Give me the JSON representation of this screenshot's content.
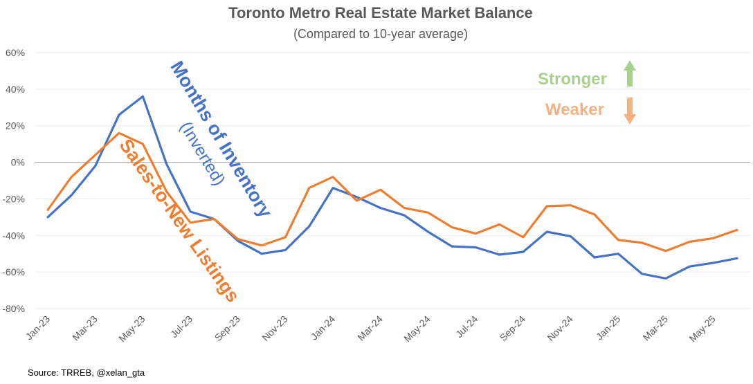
{
  "colors": {
    "inventory": "#4472c4",
    "sales": "#ed7d31",
    "stronger": "#a9d18e",
    "weaker": "#f4b183",
    "text": "#595959"
  },
  "chart_data": {
    "type": "line",
    "title": "Toronto Metro Real Estate Market Balance",
    "subtitle": "(Compared to 10-year average)",
    "ylim": [
      -80,
      60
    ],
    "yticks": [
      "60%",
      "40%",
      "20%",
      "0%",
      "-20%",
      "-40%",
      "-60%",
      "-80%"
    ],
    "ytick_values": [
      60,
      40,
      20,
      0,
      -20,
      -40,
      -60,
      -80
    ],
    "x": [
      "Jan-23",
      "Feb-23",
      "Mar-23",
      "Apr-23",
      "May-23",
      "Jun-23",
      "Jul-23",
      "Aug-23",
      "Sep-23",
      "Oct-23",
      "Nov-23",
      "Dec-23",
      "Jan-24",
      "Feb-24",
      "Mar-24",
      "Apr-24",
      "May-24",
      "Jun-24",
      "Jul-24",
      "Aug-24",
      "Sep-24",
      "Oct-24",
      "Nov-24",
      "Dec-24",
      "Jan-25",
      "Feb-25",
      "Mar-25",
      "Apr-25",
      "May-25",
      "Jun-25"
    ],
    "xtick_labels": [
      "Jan-23",
      "Mar-23",
      "May-23",
      "Jul-23",
      "Sep-23",
      "Nov-23",
      "Jan-24",
      "Mar-24",
      "May-24",
      "Jul-24",
      "Sep-24",
      "Nov-24",
      "Jan-25",
      "Mar-25",
      "May-25"
    ],
    "xtick_index": [
      0,
      2,
      4,
      6,
      8,
      10,
      12,
      14,
      16,
      18,
      20,
      22,
      24,
      26,
      28
    ],
    "grid": true,
    "legend": "none",
    "series": [
      {
        "name": "Months of Inventory",
        "values": [
          -30,
          -18,
          -2,
          26,
          36,
          -1,
          -27,
          -31,
          -43,
          -50,
          -48,
          -35,
          -14,
          -19,
          -25,
          -29,
          -38,
          -46,
          -46.5,
          -50.5,
          -49,
          -38,
          -40.5,
          -52,
          -50,
          -61,
          -63.5,
          -57,
          -55,
          -52.5
        ]
      },
      {
        "name": "Sales-to-New Listings",
        "values": [
          -26,
          -8,
          4,
          16,
          10,
          -16,
          -33,
          -31,
          -42,
          -45.5,
          -41,
          -14,
          -8,
          -21,
          -15,
          -25,
          -27.5,
          -35.5,
          -39,
          -34,
          -41,
          -24,
          -23.5,
          -28.5,
          -42.5,
          -44,
          -48.5,
          -43.5,
          -41.5,
          -37
        ]
      }
    ],
    "annotations": {
      "inventory_label": "Months of Inventory",
      "inventory_sub": "(Inverted)",
      "sales_label": "Sales-to-New Listings",
      "stronger": "Stronger",
      "weaker": "Weaker"
    },
    "source": "Source: TRREB, @xelan_gta"
  }
}
